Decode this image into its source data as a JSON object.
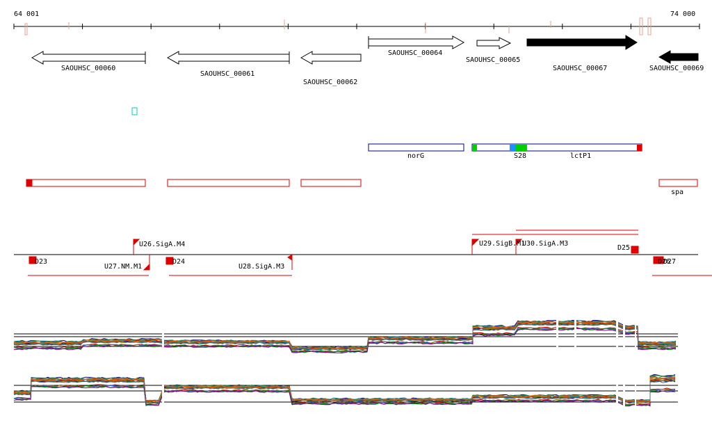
{
  "axis": {
    "start_label": "64 001",
    "end_label": "74 000"
  },
  "genes": [
    {
      "label": "SAOUHSC_00060",
      "strand": "-",
      "filled": false
    },
    {
      "label": "SAOUHSC_00061",
      "strand": "-",
      "filled": false
    },
    {
      "label": "SAOUHSC_00062",
      "strand": "-",
      "filled": false
    },
    {
      "label": "SAOUHSC_00064",
      "strand": "+",
      "filled": false
    },
    {
      "label": "SAOUHSC_00065",
      "strand": "+",
      "filled": false
    },
    {
      "label": "SAOUHSC_00067",
      "strand": "+",
      "filled": true
    },
    {
      "label": "SAOUHSC_00069",
      "strand": "-",
      "filled": true
    }
  ],
  "annotations": [
    {
      "label": "norG"
    },
    {
      "label": "S28"
    },
    {
      "label": "lctP1"
    },
    {
      "label": "spa"
    }
  ],
  "regulatory_features": [
    {
      "label": "U26.SigA.M4"
    },
    {
      "label": "U27.NM.M1"
    },
    {
      "label": "D23"
    },
    {
      "label": "D24"
    },
    {
      "label": "U28.SigA.M3"
    },
    {
      "label": "U29.SigB.M1"
    },
    {
      "label": "U30.SigA.M3"
    },
    {
      "label": "D25"
    },
    {
      "label": "D26"
    },
    {
      "label": "D27"
    }
  ],
  "colors": {
    "track_red": "#e00000",
    "annotation_blue": "#00008b",
    "marker_green": "#00d000",
    "marker_blue": "#1e90ff",
    "highlight_cyan": "#00c8c8",
    "tick_peach": "#f0b0a0"
  }
}
